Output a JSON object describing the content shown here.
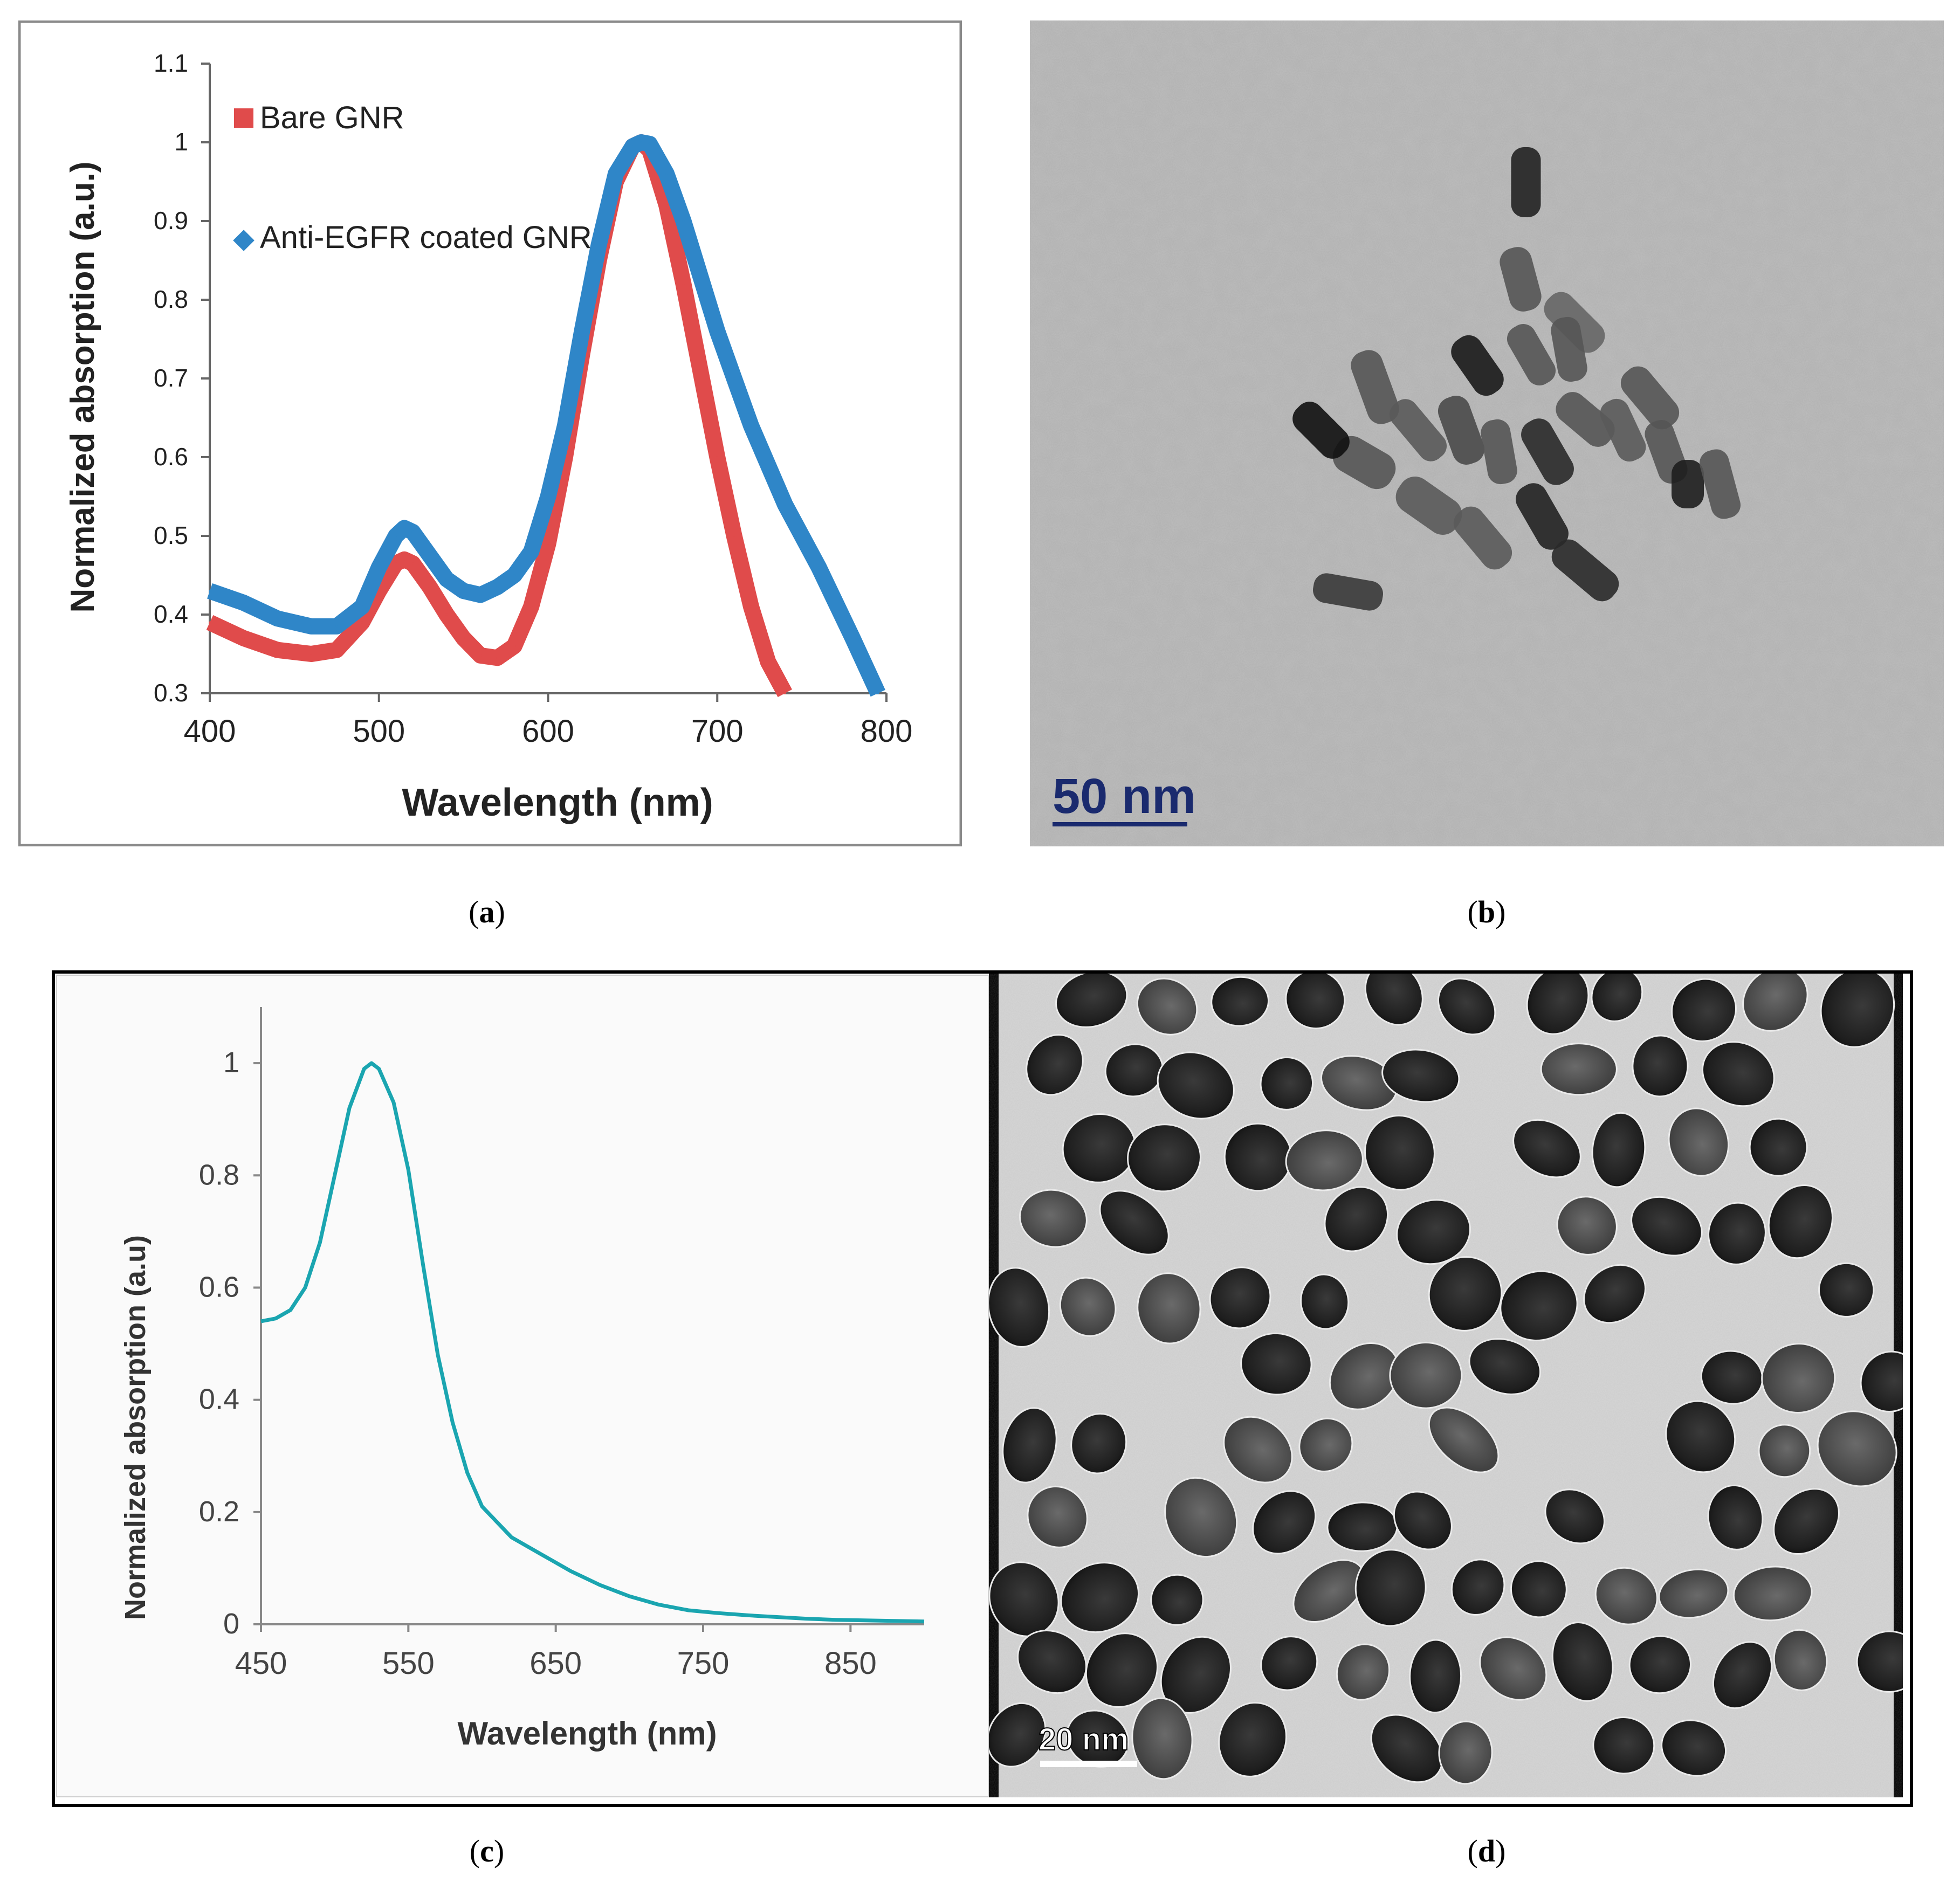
{
  "panels": {
    "a": {
      "letter": "a"
    },
    "b": {
      "letter": "b",
      "scale_label": "50 nm"
    },
    "c": {
      "letter": "c"
    },
    "d": {
      "letter": "d",
      "scale_label": "20 nm"
    }
  },
  "colors": {
    "bare_gnr": "#e04b4b",
    "anti_egfr": "#2f86c8",
    "sphere_curve": "#1aa5b0",
    "scale_b": "#1a2a6e"
  },
  "chart_data": [
    {
      "id": "a",
      "type": "line",
      "title": "",
      "xlabel": "Wavelength (nm)",
      "ylabel": "Normalized absorption (a.u.)",
      "xlim": [
        400,
        800
      ],
      "ylim": [
        0.3,
        1.1
      ],
      "xticks": [
        "400",
        "500",
        "600",
        "700",
        "800"
      ],
      "yticks": [
        "0.3",
        "0.4",
        "0.5",
        "0.6",
        "0.7",
        "0.8",
        "0.9",
        "1",
        "1.1"
      ],
      "legend_position": "top-left",
      "grid": false,
      "series": [
        {
          "name": "Bare GNR",
          "marker": "square",
          "x": [
            400,
            420,
            440,
            460,
            475,
            490,
            500,
            510,
            515,
            520,
            530,
            540,
            550,
            560,
            570,
            580,
            590,
            600,
            610,
            620,
            630,
            640,
            650,
            655,
            660,
            670,
            680,
            690,
            700,
            710,
            720,
            730,
            740
          ],
          "y": [
            0.39,
            0.37,
            0.355,
            0.35,
            0.355,
            0.39,
            0.43,
            0.465,
            0.47,
            0.465,
            0.435,
            0.4,
            0.37,
            0.348,
            0.345,
            0.36,
            0.41,
            0.49,
            0.6,
            0.73,
            0.85,
            0.95,
            0.995,
            1.0,
            0.99,
            0.92,
            0.82,
            0.71,
            0.6,
            0.5,
            0.41,
            0.34,
            0.3
          ]
        },
        {
          "name": "Anti-EGFR coated GNR",
          "marker": "diamond",
          "x": [
            400,
            420,
            440,
            460,
            475,
            490,
            500,
            510,
            515,
            520,
            530,
            540,
            550,
            560,
            570,
            580,
            590,
            600,
            610,
            620,
            630,
            640,
            650,
            655,
            660,
            670,
            680,
            690,
            700,
            710,
            720,
            740,
            760,
            780,
            795
          ],
          "y": [
            0.43,
            0.415,
            0.395,
            0.385,
            0.385,
            0.41,
            0.46,
            0.5,
            0.51,
            0.505,
            0.475,
            0.445,
            0.43,
            0.425,
            0.435,
            0.45,
            0.48,
            0.55,
            0.64,
            0.76,
            0.87,
            0.96,
            0.995,
            1.0,
            0.998,
            0.96,
            0.9,
            0.83,
            0.76,
            0.7,
            0.64,
            0.54,
            0.46,
            0.37,
            0.3
          ]
        }
      ]
    },
    {
      "id": "c",
      "type": "line",
      "title": "",
      "xlabel": "Wavelength (nm)",
      "ylabel": "Normalized absorption (a.u)",
      "xlim": [
        450,
        900
      ],
      "ylim": [
        0,
        1.1
      ],
      "xticks": [
        "450",
        "550",
        "650",
        "750",
        "850"
      ],
      "yticks": [
        "0",
        "0.2",
        "0.4",
        "0.6",
        "0.8",
        "1"
      ],
      "grid": false,
      "series": [
        {
          "x": [
            450,
            460,
            470,
            480,
            490,
            500,
            510,
            520,
            525,
            530,
            540,
            550,
            560,
            570,
            580,
            590,
            600,
            620,
            640,
            660,
            680,
            700,
            720,
            740,
            760,
            780,
            800,
            820,
            840,
            860,
            880,
            900
          ],
          "y": [
            0.54,
            0.545,
            0.56,
            0.6,
            0.68,
            0.8,
            0.92,
            0.99,
            1.0,
            0.99,
            0.93,
            0.81,
            0.64,
            0.48,
            0.36,
            0.27,
            0.21,
            0.155,
            0.125,
            0.095,
            0.07,
            0.05,
            0.035,
            0.025,
            0.02,
            0.016,
            0.013,
            0.01,
            0.008,
            0.007,
            0.006,
            0.005
          ]
        }
      ]
    }
  ]
}
